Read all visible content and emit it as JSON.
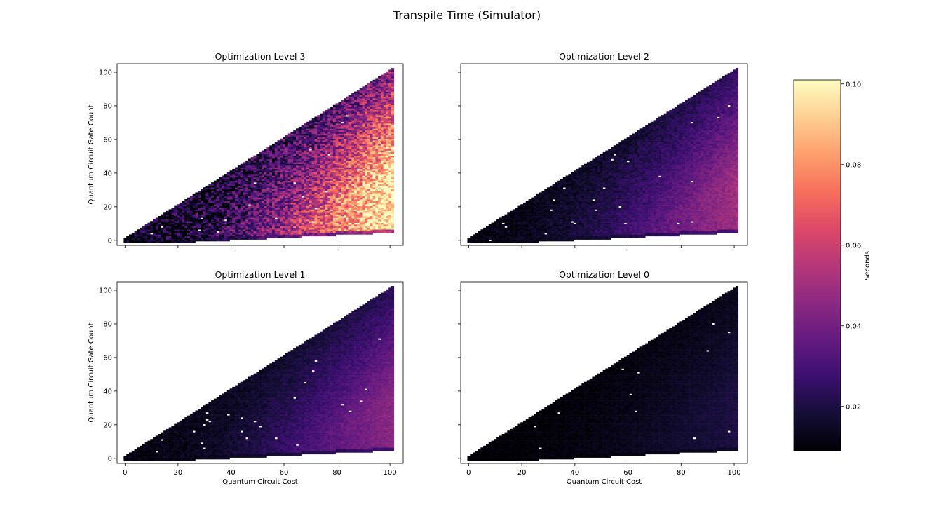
{
  "figure": {
    "suptitle": "Transpile Time (Simulator)"
  },
  "colorbar": {
    "label": "Seconds",
    "colormap": "magma",
    "vmin": 0.009,
    "vmax": 0.101,
    "ticks": [
      "0.02",
      "0.04",
      "0.06",
      "0.08",
      "0.10"
    ]
  },
  "chart_data": [
    {
      "type": "heatmap",
      "title": "Optimization Level 3",
      "xlabel": "",
      "ylabel": "Quantum Circuit Gate Count",
      "xlim": [
        -3,
        105
      ],
      "ylim": [
        -3,
        105
      ],
      "xticks": [
        "0",
        "20",
        "40",
        "60",
        "80",
        "100"
      ],
      "yticks": [
        "0",
        "20",
        "40",
        "60",
        "80",
        "100"
      ],
      "x_tick_labels_visible": false,
      "y_tick_labels_visible": true,
      "value_range": [
        0.012,
        0.1
      ],
      "scale": 1.0,
      "note_blank_cells": 20
    },
    {
      "type": "heatmap",
      "title": "Optimization Level 2",
      "xlabel": "",
      "ylabel": "",
      "xlim": [
        -3,
        105
      ],
      "ylim": [
        -3,
        105
      ],
      "xticks": [
        "0",
        "20",
        "40",
        "60",
        "80",
        "100"
      ],
      "yticks": [
        "0",
        "20",
        "40",
        "60",
        "80",
        "100"
      ],
      "x_tick_labels_visible": false,
      "y_tick_labels_visible": false,
      "value_range": [
        0.011,
        0.05
      ],
      "scale": 0.45,
      "note_blank_cells": 24
    },
    {
      "type": "heatmap",
      "title": "Optimization Level 1",
      "xlabel": "Quantum Circuit Cost",
      "ylabel": "Quantum Circuit Gate Count",
      "xlim": [
        -3,
        105
      ],
      "ylim": [
        -3,
        105
      ],
      "xticks": [
        "0",
        "20",
        "40",
        "60",
        "80",
        "100"
      ],
      "yticks": [
        "0",
        "20",
        "40",
        "60",
        "80",
        "100"
      ],
      "x_tick_labels_visible": true,
      "y_tick_labels_visible": true,
      "value_range": [
        0.011,
        0.045
      ],
      "scale": 0.38,
      "note_blank_cells": 26
    },
    {
      "type": "heatmap",
      "title": "Optimization Level 0",
      "xlabel": "Quantum Circuit Cost",
      "ylabel": "",
      "xlim": [
        -3,
        105
      ],
      "ylim": [
        -3,
        105
      ],
      "xticks": [
        "0",
        "20",
        "40",
        "60",
        "80",
        "100"
      ],
      "yticks": [
        "0",
        "20",
        "40",
        "60",
        "80",
        "100"
      ],
      "x_tick_labels_visible": true,
      "y_tick_labels_visible": false,
      "value_range": [
        0.009,
        0.02
      ],
      "scale": 0.1,
      "note_blank_cells": 12
    }
  ]
}
